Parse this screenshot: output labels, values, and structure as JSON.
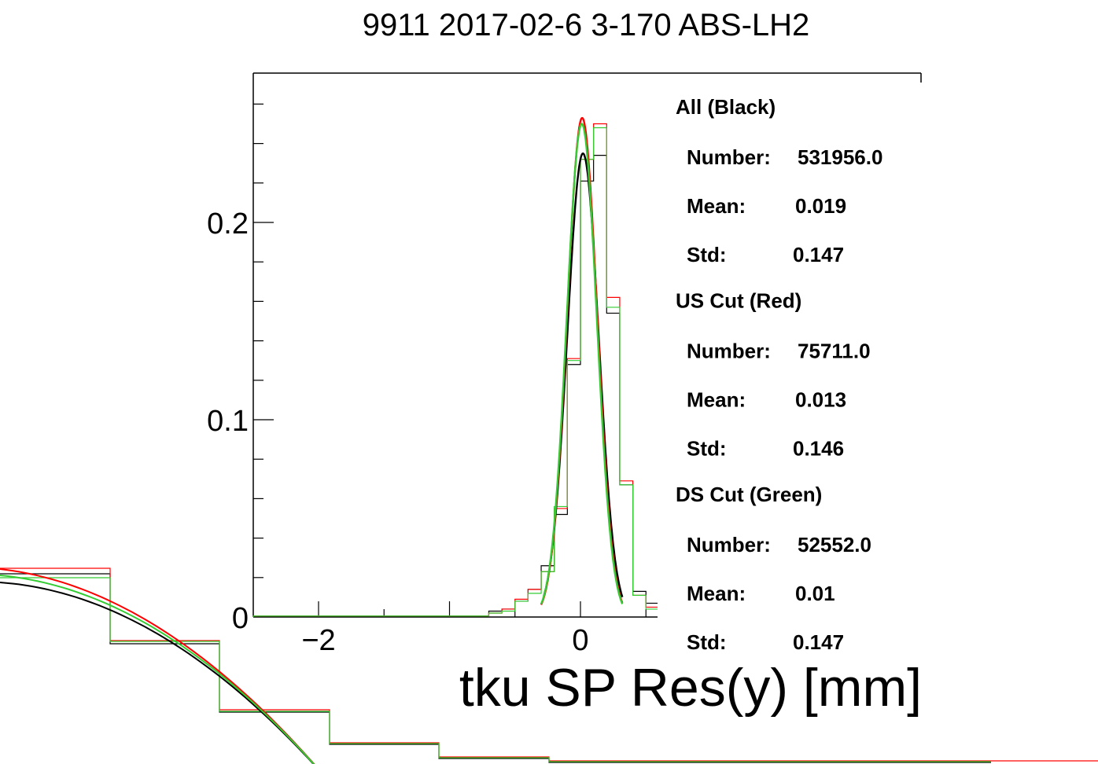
{
  "chart_data": {
    "type": "line",
    "title": "9911 2017-02-6 3-170 ABS-LH2",
    "xlabel": "tku SP Res(y) [mm]",
    "ylabel": "",
    "xlim": [
      -2.5,
      0.6
    ],
    "ylim": [
      0,
      0.275
    ],
    "y_ticks": [
      {
        "value": 0,
        "label": "0"
      },
      {
        "value": 0.1,
        "label": "0.1"
      },
      {
        "value": 0.2,
        "label": "0.2"
      }
    ],
    "x_ticks": [
      {
        "value": -2,
        "label": "−2"
      },
      {
        "value": 0,
        "label": "0"
      }
    ],
    "bin_edges": [
      -2.5,
      -0.7,
      -0.6,
      -0.5,
      -0.4,
      -0.3,
      -0.2,
      -0.1,
      0.0,
      0.1,
      0.2,
      0.3,
      0.4,
      0.5,
      0.6
    ],
    "series": [
      {
        "color": "#000000",
        "hist": [
          0.0005,
          0.003,
          0.004,
          0.008,
          0.014,
          0.026,
          0.052,
          0.128,
          0.221,
          0.234,
          0.154,
          0.067,
          0.013,
          0.007
        ],
        "fit": {
          "mean": 0.019,
          "sigma": 0.12,
          "amp": 0.235,
          "range": [
            -0.28,
            0.32
          ]
        }
      },
      {
        "color": "#ff0000",
        "hist": [
          0.0005,
          0.002,
          0.004,
          0.009,
          0.014,
          0.023,
          0.055,
          0.131,
          0.232,
          0.25,
          0.162,
          0.069,
          0.011,
          0.005
        ],
        "fit": {
          "mean": 0.013,
          "sigma": 0.115,
          "amp": 0.253,
          "range": [
            -0.3,
            0.32
          ]
        }
      },
      {
        "color": "#33cc33",
        "hist": [
          0.0005,
          0.002,
          0.003,
          0.008,
          0.012,
          0.023,
          0.056,
          0.13,
          0.232,
          0.248,
          0.157,
          0.067,
          0.011,
          0.004
        ],
        "fit": {
          "mean": 0.01,
          "sigma": 0.115,
          "amp": 0.25,
          "range": [
            -0.3,
            0.32
          ]
        }
      }
    ],
    "stats": [
      {
        "title": "All (Black)",
        "number_label": "Number:",
        "number": "531956.0",
        "mean_label": "Mean:",
        "mean": "0.019",
        "std_label": "Std:",
        "std": "0.147"
      },
      {
        "title": "US Cut (Red)",
        "number_label": "Number:",
        "number": "75711.0",
        "mean_label": "Mean:",
        "mean": "0.013",
        "std_label": "Std:",
        "std": "0.146"
      },
      {
        "title": "DS Cut (Green)",
        "number_label": "Number:",
        "number": "52552.0",
        "mean_label": "Mean:",
        "mean": "0.01",
        "std_label": "Std:",
        "std": "0.147"
      }
    ]
  }
}
